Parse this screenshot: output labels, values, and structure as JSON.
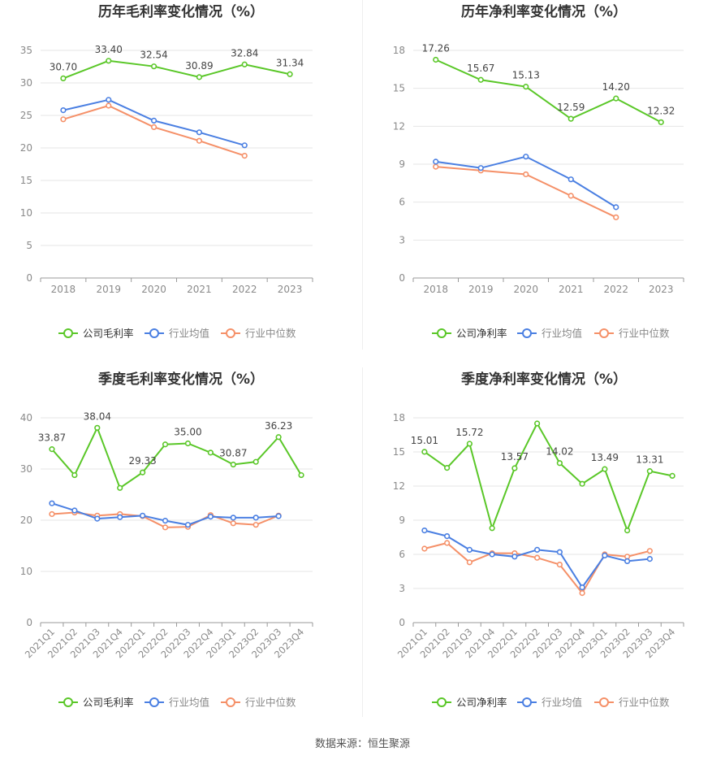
{
  "source_text": "数据来源：恒生聚源",
  "colors": {
    "company": "#5ac728",
    "avg": "#4a7fe2",
    "median": "#f59068",
    "grid": "#e6e6e6",
    "axis": "#999999"
  },
  "chart_data": [
    {
      "type": "line",
      "title": "历年毛利率变化情况（%）",
      "categories": [
        "2018",
        "2019",
        "2020",
        "2021",
        "2022",
        "2023"
      ],
      "ylim": [
        0,
        35
      ],
      "yticks": [
        0,
        5,
        10,
        15,
        20,
        25,
        30,
        35
      ],
      "series": [
        {
          "name": "公司毛利率",
          "values": [
            30.7,
            33.4,
            32.54,
            30.89,
            32.84,
            31.34
          ],
          "labels": [
            "30.70",
            "33.40",
            "32.54",
            "30.89",
            "32.84",
            "31.34"
          ]
        },
        {
          "name": "行业均值",
          "values": [
            25.8,
            27.4,
            24.2,
            22.4,
            20.4,
            null
          ]
        },
        {
          "name": "行业中位数",
          "values": [
            24.4,
            26.5,
            23.2,
            21.1,
            18.8,
            null
          ]
        }
      ],
      "legend": "bottom"
    },
    {
      "type": "line",
      "title": "历年净利率变化情况（%）",
      "categories": [
        "2018",
        "2019",
        "2020",
        "2021",
        "2022",
        "2023"
      ],
      "ylim": [
        0,
        18
      ],
      "yticks": [
        0,
        3,
        6,
        9,
        12,
        15,
        18
      ],
      "series": [
        {
          "name": "公司净利率",
          "values": [
            17.26,
            15.67,
            15.13,
            12.59,
            14.2,
            12.32
          ],
          "labels": [
            "17.26",
            "15.67",
            "15.13",
            "12.59",
            "14.20",
            "12.32"
          ]
        },
        {
          "name": "行业均值",
          "values": [
            9.2,
            8.7,
            9.6,
            7.8,
            5.6,
            null
          ]
        },
        {
          "name": "行业中位数",
          "values": [
            8.8,
            8.5,
            8.2,
            6.5,
            4.8,
            null
          ]
        }
      ],
      "legend": "bottom"
    },
    {
      "type": "line",
      "title": "季度毛利率变化情况（%）",
      "categories": [
        "2021Q1",
        "2021Q2",
        "2021Q3",
        "2021Q4",
        "2022Q1",
        "2022Q2",
        "2022Q3",
        "2022Q4",
        "2023Q1",
        "2023Q2",
        "2023Q3",
        "2023Q4"
      ],
      "ylim": [
        0,
        40
      ],
      "yticks": [
        0,
        10,
        20,
        30,
        40
      ],
      "series": [
        {
          "name": "公司毛利率",
          "values": [
            33.87,
            28.8,
            38.04,
            26.3,
            29.33,
            34.8,
            35.0,
            33.2,
            30.87,
            31.4,
            36.23,
            28.8
          ],
          "labels": [
            "33.87",
            null,
            "38.04",
            null,
            "29.33",
            null,
            "35.00",
            null,
            "30.87",
            null,
            "36.23",
            null
          ]
        },
        {
          "name": "行业均值",
          "values": [
            23.3,
            21.9,
            20.3,
            20.6,
            20.9,
            19.9,
            19.1,
            20.7,
            20.5,
            20.5,
            20.8,
            null
          ]
        },
        {
          "name": "行业中位数",
          "values": [
            21.2,
            21.5,
            20.9,
            21.2,
            20.8,
            18.6,
            18.7,
            21.0,
            19.4,
            19.1,
            20.9,
            null
          ]
        }
      ],
      "legend": "bottom"
    },
    {
      "type": "line",
      "title": "季度净利率变化情况（%）",
      "categories": [
        "2021Q1",
        "2021Q2",
        "2021Q3",
        "2021Q4",
        "2022Q1",
        "2022Q2",
        "2022Q3",
        "2022Q4",
        "2023Q1",
        "2023Q2",
        "2023Q3",
        "2023Q4"
      ],
      "ylim": [
        0,
        18
      ],
      "yticks": [
        0,
        3,
        6,
        9,
        12,
        15,
        18
      ],
      "series": [
        {
          "name": "公司净利率",
          "values": [
            15.01,
            13.6,
            15.72,
            8.3,
            13.57,
            17.5,
            14.02,
            12.2,
            13.49,
            8.1,
            13.31,
            12.9
          ],
          "labels": [
            "15.01",
            null,
            "15.72",
            null,
            "13.57",
            null,
            "14.02",
            null,
            "13.49",
            null,
            "13.31",
            null
          ]
        },
        {
          "name": "行业均值",
          "values": [
            8.1,
            7.6,
            6.4,
            6.0,
            5.8,
            6.4,
            6.2,
            3.1,
            5.9,
            5.4,
            5.6,
            null
          ]
        },
        {
          "name": "行业中位数",
          "values": [
            6.5,
            7.0,
            5.3,
            6.1,
            6.1,
            5.7,
            5.1,
            2.6,
            6.0,
            5.8,
            6.3,
            null
          ]
        }
      ],
      "legend": "bottom"
    }
  ]
}
